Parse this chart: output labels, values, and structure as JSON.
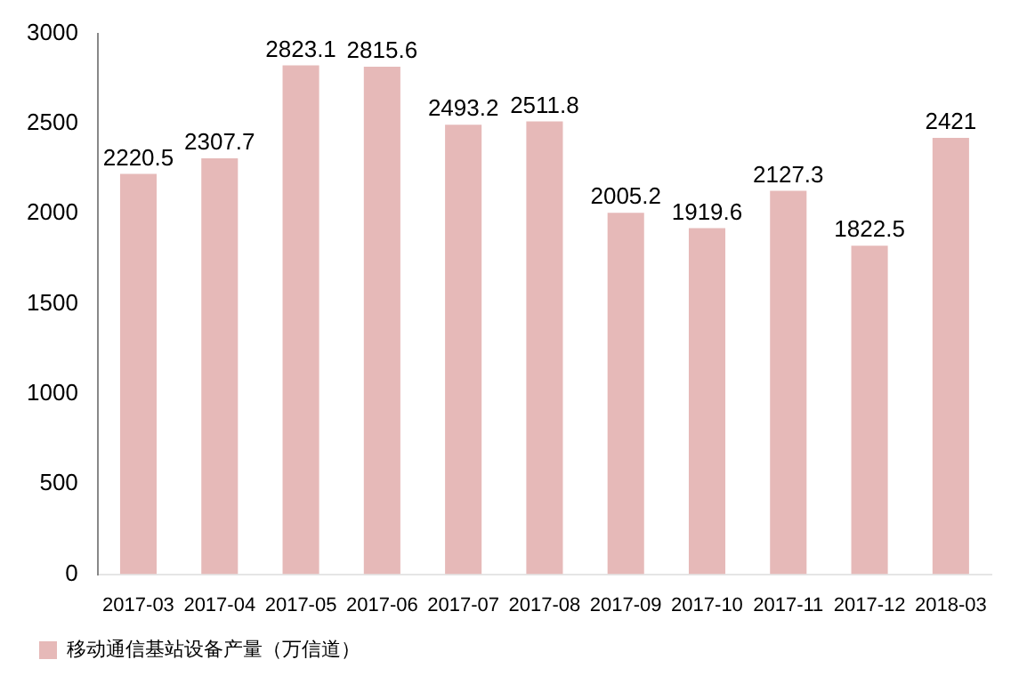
{
  "chart_data": {
    "type": "bar",
    "categories": [
      "2017-03",
      "2017-04",
      "2017-05",
      "2017-06",
      "2017-07",
      "2017-08",
      "2017-09",
      "2017-10",
      "2017-11",
      "2017-12",
      "2018-03"
    ],
    "series": [
      {
        "name": "移动通信基站设备产量（万信道）",
        "color": "#e6b9b8",
        "values": [
          2220.5,
          2307.7,
          2823.1,
          2815.6,
          2493.2,
          2511.8,
          2005.2,
          1919.6,
          2127.3,
          1822.5,
          2421
        ]
      }
    ],
    "ylim": [
      0,
      3000
    ],
    "yticks": [
      0,
      500,
      1000,
      1500,
      2000,
      2500,
      3000
    ],
    "grid": false,
    "legend": "bottom left",
    "data_labels": true
  }
}
